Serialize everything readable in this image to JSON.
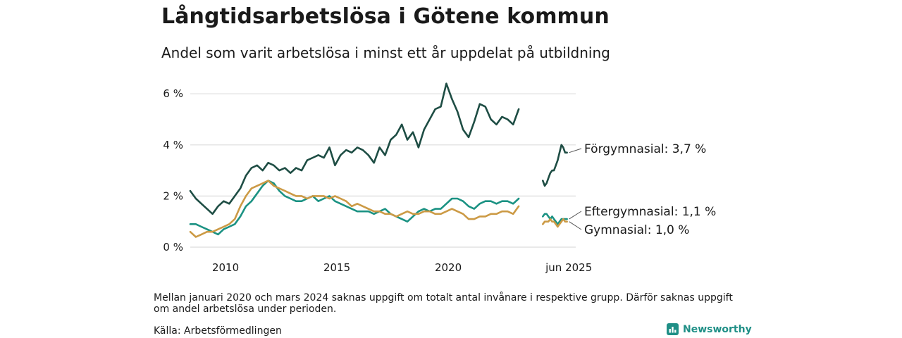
{
  "title": "Långtidsarbetslösa i Götene kommun",
  "subtitle": "Andel som varit arbetslösa i minst ett år uppdelat på utbildning",
  "note": "Mellan januari 2020 och mars 2024 saknas uppgift om totalt antal invånare i respektive grupp. Därför saknas uppgift om andel arbetslösa under perioden.",
  "source": "Källa: Arbetsförmedlingen",
  "brand": "Newsworthy",
  "brand_icon": "newsworthy-logo-icon",
  "chart_data": {
    "type": "line",
    "title": "Långtidsarbetslösa i Götene kommun",
    "subtitle": "Andel som varit arbetslösa i minst ett år uppdelat på utbildning",
    "x_ticks": [
      "2010",
      "2015",
      "2020",
      "jun 2025"
    ],
    "y_ticks": [
      "0 %",
      "2 %",
      "4 %",
      "6 %"
    ],
    "ylim": [
      0,
      6.5
    ],
    "grid": true,
    "series": [
      {
        "name": "Förgymnasial",
        "color": "#1e4d44",
        "end_label": "Förgymnasial: 3,7 %",
        "segments": [
          {
            "start": "2008-06",
            "step_months": 3,
            "values": [
              2.2,
              1.9,
              1.7,
              1.5,
              1.3,
              1.6,
              1.8,
              1.7,
              2.0,
              2.3,
              2.8,
              3.1,
              3.2,
              3.0,
              3.3,
              3.2,
              3.0,
              3.1,
              2.9,
              3.1,
              3.0,
              3.4,
              3.5,
              3.6,
              3.5,
              3.9,
              3.2,
              3.6,
              3.8,
              3.7,
              3.9,
              3.8,
              3.6,
              3.3,
              3.9,
              3.6,
              4.2,
              4.4,
              4.8,
              4.2,
              4.5,
              3.9,
              4.6,
              5.0,
              5.4,
              5.5,
              6.4,
              5.8,
              5.3,
              4.6,
              4.3,
              4.9,
              5.6,
              5.5,
              5.0,
              4.8,
              5.1,
              5.0,
              4.8,
              5.4
            ]
          },
          {
            "start": "2024-04",
            "step_months": 1,
            "values": [
              2.6,
              2.4,
              2.5,
              2.7,
              2.9,
              3.0,
              3.0,
              3.2,
              3.4,
              3.7,
              4.0,
              3.9,
              3.7,
              3.7
            ]
          }
        ]
      },
      {
        "name": "Eftergymnasial",
        "color": "#1b9283",
        "end_label": "Eftergymnasial: 1,1 %",
        "segments": [
          {
            "start": "2008-06",
            "step_months": 3,
            "values": [
              0.9,
              0.9,
              0.8,
              0.7,
              0.6,
              0.5,
              0.7,
              0.8,
              0.9,
              1.2,
              1.6,
              1.8,
              2.1,
              2.4,
              2.6,
              2.5,
              2.2,
              2.0,
              1.9,
              1.8,
              1.8,
              1.9,
              2.0,
              1.8,
              1.9,
              2.0,
              1.8,
              1.7,
              1.6,
              1.5,
              1.4,
              1.4,
              1.4,
              1.3,
              1.4,
              1.5,
              1.3,
              1.2,
              1.1,
              1.0,
              1.2,
              1.4,
              1.5,
              1.4,
              1.5,
              1.5,
              1.7,
              1.9,
              1.9,
              1.8,
              1.6,
              1.5,
              1.7,
              1.8,
              1.8,
              1.7,
              1.8,
              1.8,
              1.7,
              1.9
            ]
          },
          {
            "start": "2024-04",
            "step_months": 1,
            "values": [
              1.2,
              1.3,
              1.3,
              1.2,
              1.1,
              1.2,
              1.1,
              1.0,
              0.9,
              1.0,
              1.1,
              1.1,
              1.1,
              1.1
            ]
          }
        ]
      },
      {
        "name": "Gymnasial",
        "color": "#cc9a45",
        "end_label": "Gymnasial: 1,0 %",
        "segments": [
          {
            "start": "2008-06",
            "step_months": 3,
            "values": [
              0.6,
              0.4,
              0.5,
              0.6,
              0.6,
              0.7,
              0.8,
              0.9,
              1.1,
              1.6,
              2.0,
              2.3,
              2.4,
              2.5,
              2.6,
              2.4,
              2.3,
              2.2,
              2.1,
              2.0,
              2.0,
              1.9,
              2.0,
              2.0,
              2.0,
              1.9,
              2.0,
              1.9,
              1.8,
              1.6,
              1.7,
              1.6,
              1.5,
              1.4,
              1.4,
              1.3,
              1.3,
              1.2,
              1.3,
              1.4,
              1.3,
              1.3,
              1.4,
              1.4,
              1.3,
              1.3,
              1.4,
              1.5,
              1.4,
              1.3,
              1.1,
              1.1,
              1.2,
              1.2,
              1.3,
              1.3,
              1.4,
              1.4,
              1.3,
              1.6
            ]
          },
          {
            "start": "2024-04",
            "step_months": 1,
            "values": [
              0.9,
              1.0,
              1.0,
              1.0,
              1.1,
              1.0,
              1.0,
              0.9,
              0.8,
              0.9,
              1.0,
              1.1,
              1.0,
              1.0
            ]
          }
        ]
      }
    ]
  }
}
